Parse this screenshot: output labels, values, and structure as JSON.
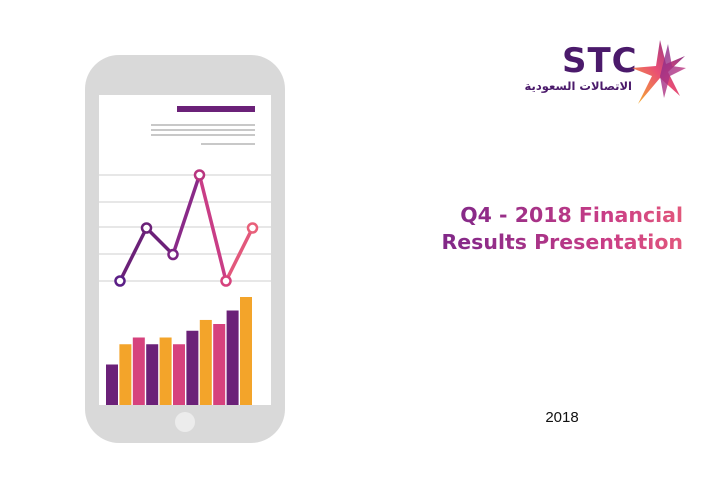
{
  "brand": {
    "name": "STC",
    "arabic_name": "الاتصالات السعودية",
    "purple": "#4b1a6b"
  },
  "title": {
    "line1": "Q4 - 2018 Financial",
    "line2": "Results Presentation"
  },
  "year": "2018",
  "colors": {
    "purple": "#6b2178",
    "orange": "#f3a42a",
    "pink": "#d6427d",
    "phone_body": "#d9d9d9",
    "phone_screen": "#ffffff"
  },
  "illustration": {
    "line_points": [
      1,
      3,
      2,
      5,
      1,
      3
    ],
    "bars": [
      {
        "value": 3,
        "color": "purple"
      },
      {
        "value": 4.5,
        "color": "orange"
      },
      {
        "value": 5,
        "color": "pink"
      },
      {
        "value": 4.5,
        "color": "purple"
      },
      {
        "value": 5,
        "color": "orange"
      },
      {
        "value": 4.5,
        "color": "pink"
      },
      {
        "value": 5.5,
        "color": "purple"
      },
      {
        "value": 6.3,
        "color": "orange"
      },
      {
        "value": 6,
        "color": "pink"
      },
      {
        "value": 7,
        "color": "purple"
      },
      {
        "value": 8,
        "color": "orange"
      }
    ]
  }
}
